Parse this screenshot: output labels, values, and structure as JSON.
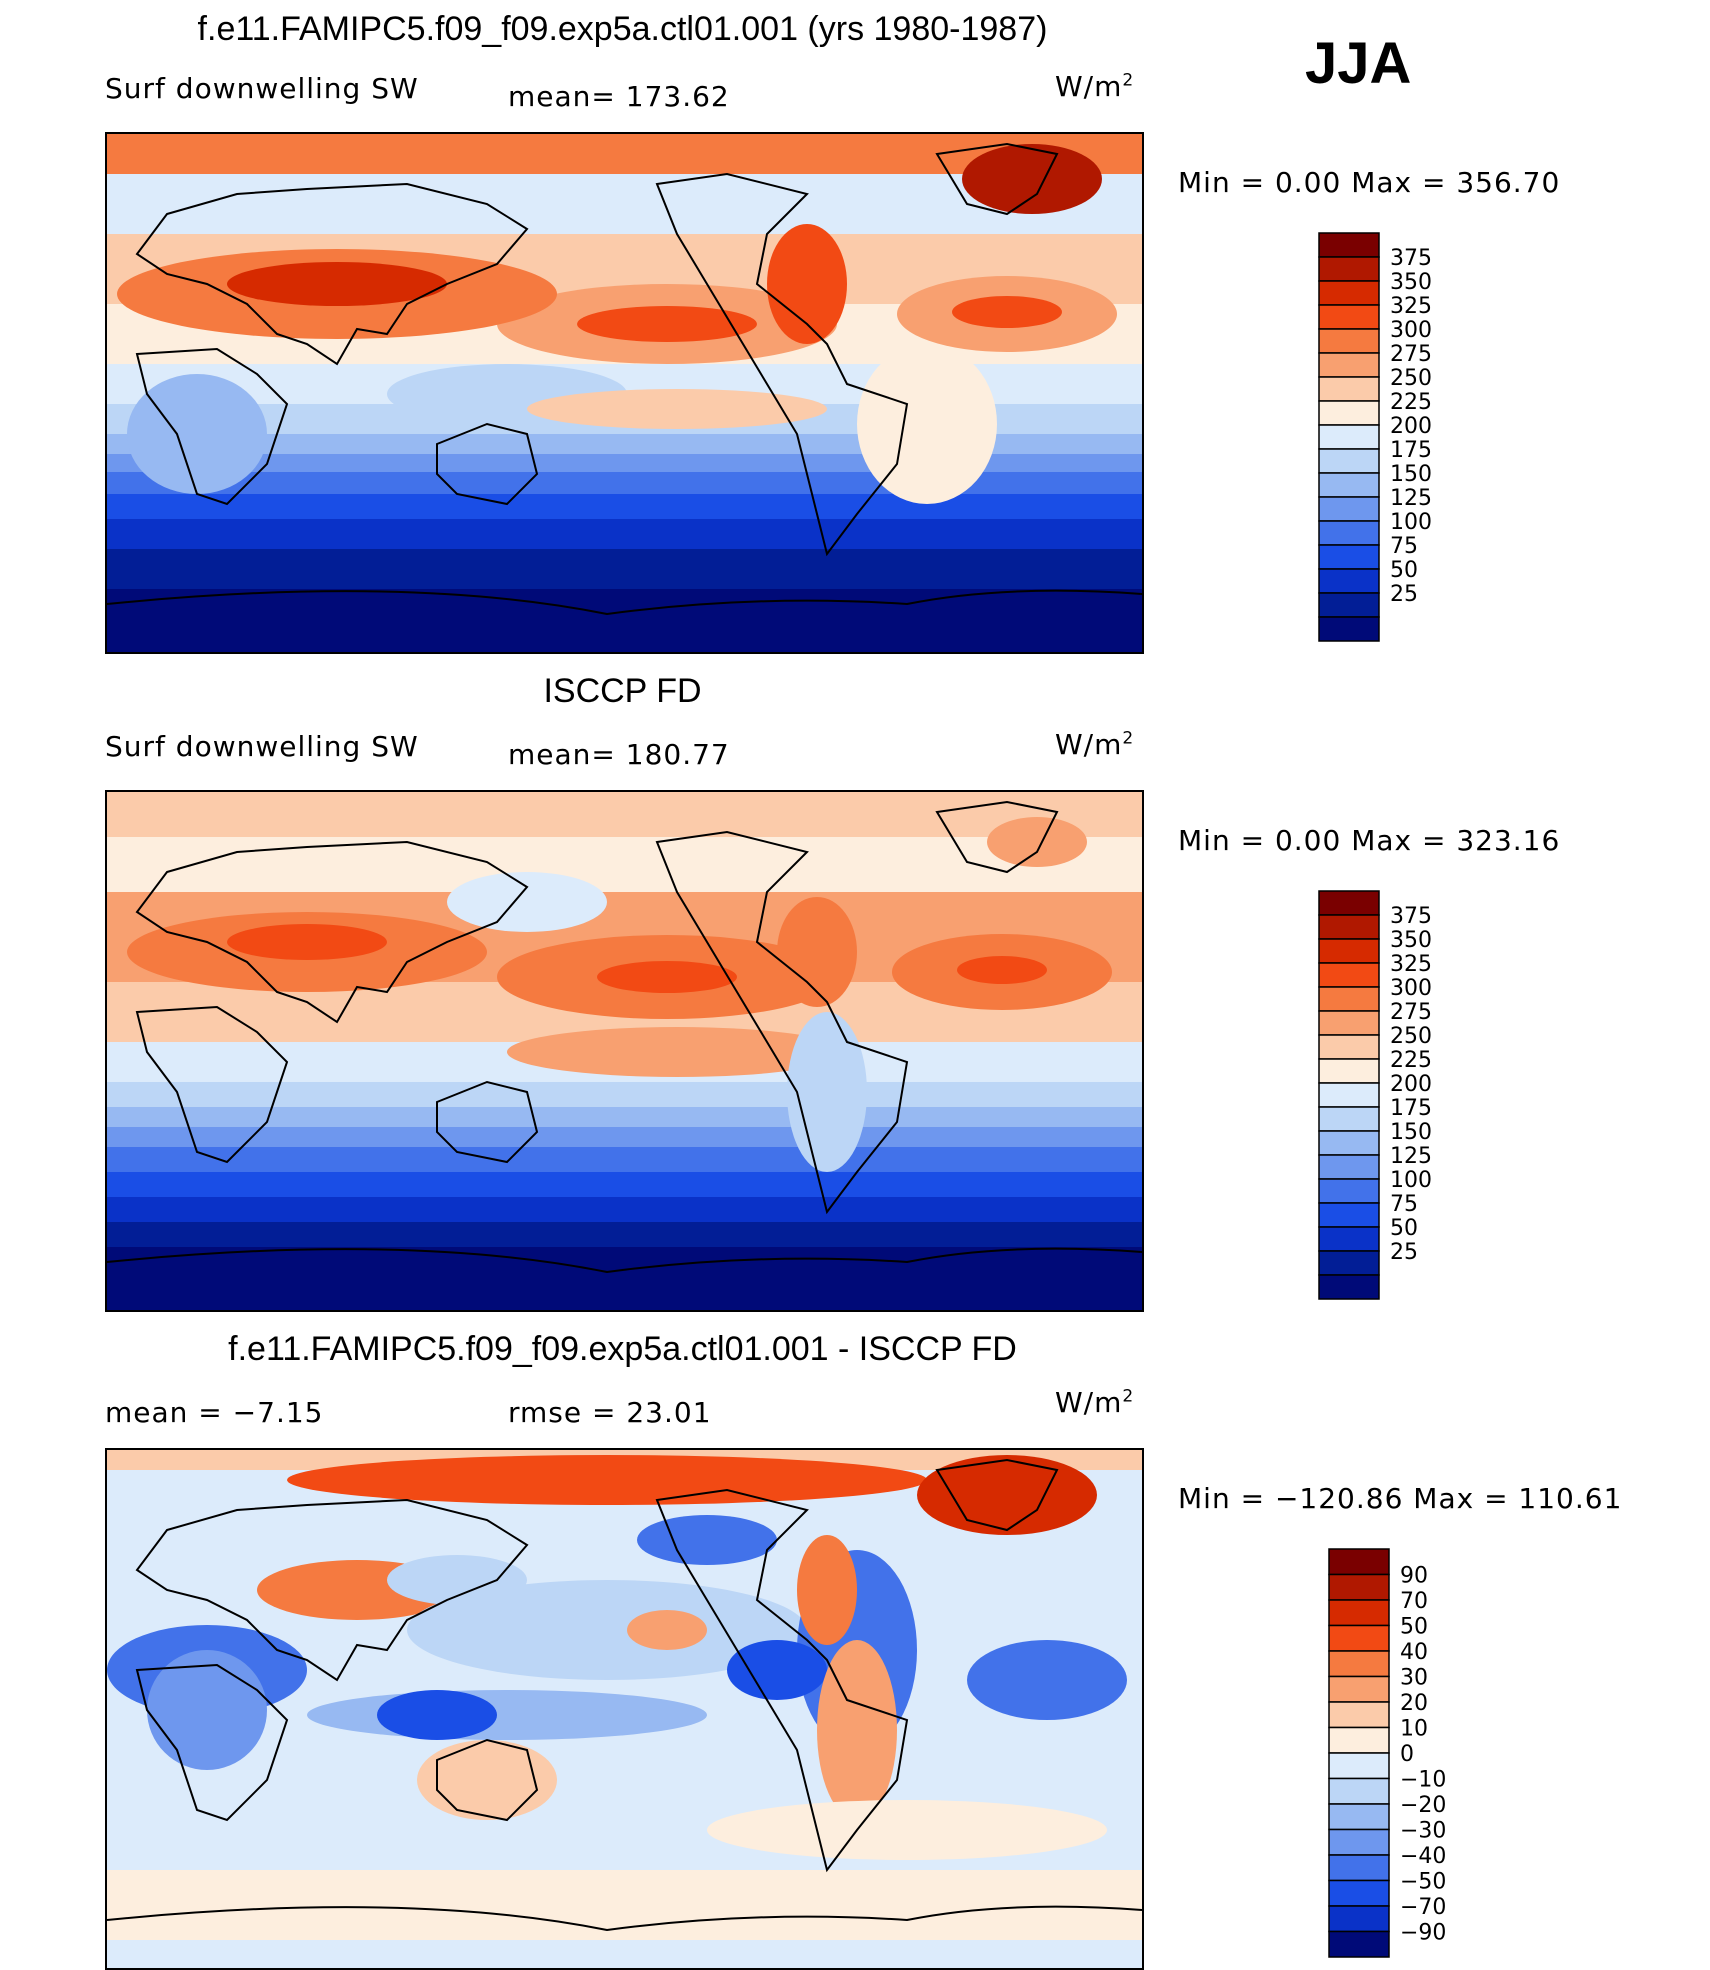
{
  "season": "JJA",
  "units_prefix": "W/m",
  "units_exp": "2",
  "panels": [
    {
      "title": "f.e11.FAMIPC5.f09_f09.exp5a.ctl01.001 (yrs 1980-1987)",
      "left_label": "Surf downwelling SW",
      "center_label": "mean= 173.62",
      "min_max": "Min =     0.00  Max  =  356.70",
      "colorbar_ticks": [
        "375",
        "350",
        "325",
        "300",
        "275",
        "250",
        "225",
        "200",
        "175",
        "150",
        "125",
        "100",
        "75",
        "50",
        "25"
      ],
      "palette": "abs"
    },
    {
      "title": "ISCCP FD",
      "left_label": "Surf downwelling SW",
      "center_label": "mean= 180.77",
      "min_max": "Min =     0.00  Max  =  323.16",
      "colorbar_ticks": [
        "375",
        "350",
        "325",
        "300",
        "275",
        "250",
        "225",
        "200",
        "175",
        "150",
        "125",
        "100",
        "75",
        "50",
        "25"
      ],
      "palette": "abs"
    },
    {
      "title": "f.e11.FAMIPC5.f09_f09.exp5a.ctl01.001 - ISCCP FD",
      "left_label": "mean =    −7.15",
      "center_label": "rmse =    23.01",
      "min_max": "Min = −120.86  Max  =  110.61",
      "colorbar_ticks": [
        "90",
        "70",
        "50",
        "40",
        "30",
        "20",
        "10",
        "0",
        "−10",
        "−20",
        "−30",
        "−40",
        "−50",
        "−70",
        "−90"
      ],
      "palette": "diff"
    }
  ],
  "colors": {
    "abs_palette": [
      "#7a0000",
      "#b01800",
      "#d62a00",
      "#f24a14",
      "#f57a40",
      "#f8a070",
      "#fbcbaa",
      "#fdeede",
      "#dcebfb",
      "#bcd6f6",
      "#97b9f2",
      "#6e97ee",
      "#4272ea",
      "#1a4ee6",
      "#0a32c8",
      "#021e96",
      "#000a78"
    ],
    "diff_palette": [
      "#7a0000",
      "#b01800",
      "#d62a00",
      "#f24a14",
      "#f57a40",
      "#f8a070",
      "#fbcbaa",
      "#fdeede",
      "#dcebfb",
      "#bcd6f6",
      "#97b9f2",
      "#6e97ee",
      "#4272ea",
      "#1a4ee6",
      "#0a32c8",
      "#000a78"
    ]
  }
}
